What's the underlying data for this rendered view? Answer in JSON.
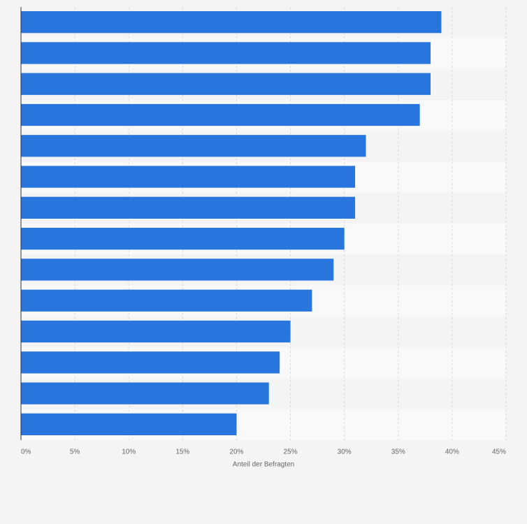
{
  "chart_data": {
    "type": "hbar",
    "categories": [
      null,
      null,
      null,
      null,
      null,
      null,
      null,
      null,
      null,
      null,
      null,
      null,
      null,
      null
    ],
    "values": [
      39,
      38,
      38,
      37,
      32,
      31,
      31,
      30,
      29,
      27,
      25,
      24,
      23,
      20
    ],
    "color": "#2876dd",
    "xlabel": "Anteil der Befragten",
    "xlim": [
      0,
      45
    ],
    "xticks": [
      {
        "value": 0,
        "label": "0%"
      },
      {
        "value": 5,
        "label": "5%"
      },
      {
        "value": 10,
        "label": "10%"
      },
      {
        "value": 15,
        "label": "15%"
      },
      {
        "value": 20,
        "label": "20%"
      },
      {
        "value": 25,
        "label": "25%"
      },
      {
        "value": 30,
        "label": "30%"
      },
      {
        "value": 35,
        "label": "35%"
      },
      {
        "value": 40,
        "label": "40%"
      },
      {
        "value": 45,
        "label": "45%"
      }
    ],
    "grid": true
  }
}
